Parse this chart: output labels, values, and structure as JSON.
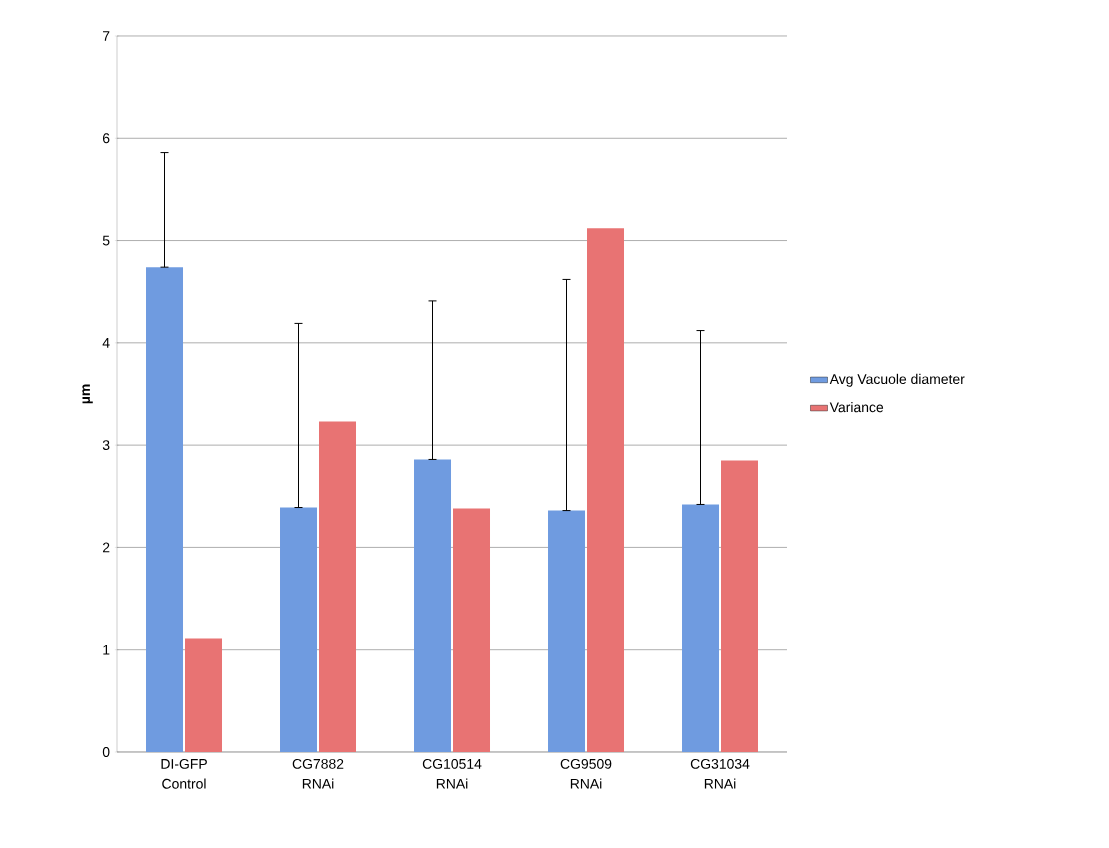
{
  "chart_data": {
    "type": "bar",
    "ylabel": "µm",
    "categories": [
      "DI-GFP Control",
      "CG7882 RNAi",
      "CG10514 RNAi",
      "CG9509 RNAi",
      "CG31034 RNAi"
    ],
    "series": [
      {
        "name": "Avg Vacuole diameter",
        "color": "#6f9be0",
        "values": [
          4.74,
          2.39,
          2.86,
          2.36,
          2.42
        ],
        "errors": [
          [
            4.74,
            5.86
          ],
          [
            2.39,
            4.19
          ],
          [
            2.86,
            4.41
          ],
          [
            2.36,
            4.62
          ],
          [
            2.42,
            4.12
          ]
        ]
      },
      {
        "name": "Variance",
        "color": "#e87373",
        "values": [
          1.11,
          3.23,
          2.38,
          5.12,
          2.85
        ]
      }
    ],
    "ylim": [
      0,
      7
    ],
    "yticks": [
      0,
      1,
      2,
      3,
      4,
      5,
      6,
      7
    ],
    "grid": "y",
    "legend": "right"
  }
}
